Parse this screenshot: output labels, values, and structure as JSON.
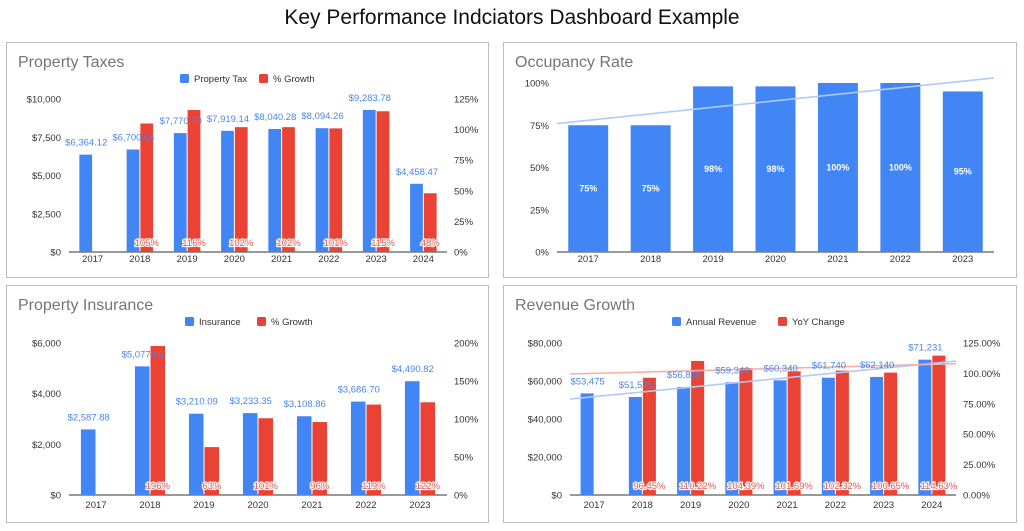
{
  "page": {
    "title": "Key Performance Indciators Dashboard Example"
  },
  "colors": {
    "blue": "#4285f4",
    "red": "#ea4335",
    "trend_blue": "#aecbfa",
    "trend_red": "#f4b1ab"
  },
  "chart_data": [
    {
      "id": "property-taxes",
      "type": "bar",
      "title": "Property Taxes",
      "categories": [
        "2017",
        "2018",
        "2019",
        "2020",
        "2021",
        "2022",
        "2023",
        "2024"
      ],
      "legend_position": "top",
      "left_axis": {
        "ylim": [
          0,
          10000
        ],
        "ticks": [
          0,
          2500,
          5000,
          7500,
          10000
        ],
        "tick_labels": [
          "$0",
          "$2,500",
          "$5,000",
          "$7,500",
          "$10,000"
        ]
      },
      "right_axis": {
        "ylim": [
          0,
          125
        ],
        "ticks": [
          0,
          25,
          50,
          75,
          100,
          125
        ],
        "tick_labels": [
          "0%",
          "25%",
          "50%",
          "75%",
          "100%",
          "125%"
        ]
      },
      "series": [
        {
          "name": "Property Tax",
          "axis": "left",
          "color": "#4285f4",
          "values": [
            6364.12,
            6700.64,
            7770.7,
            7919.14,
            8040.28,
            8094.26,
            9283.78,
            4458.47
          ],
          "labels": [
            "$6,364.12",
            "$6,700.64",
            "$7,770.70",
            "$7,919.14",
            "$8,040.28",
            "$8,094.26",
            "$9,283.78",
            "$4,458.47"
          ]
        },
        {
          "name": "% Growth",
          "axis": "right",
          "color": "#ea4335",
          "values": [
            null,
            105,
            116,
            102,
            102,
            101,
            115,
            48
          ],
          "labels": [
            "",
            "105%",
            "116%",
            "102%",
            "102%",
            "101%",
            "115%",
            "48%"
          ]
        }
      ]
    },
    {
      "id": "occupancy-rate",
      "type": "bar",
      "title": "Occupancy Rate",
      "categories": [
        "2017",
        "2018",
        "2019",
        "2020",
        "2021",
        "2022",
        "2023"
      ],
      "legend_position": "none",
      "left_axis": {
        "ylim": [
          0,
          100
        ],
        "ticks": [
          0,
          25,
          50,
          75,
          100
        ],
        "tick_labels": [
          "0%",
          "25%",
          "50%",
          "75%",
          "100%"
        ]
      },
      "trendline": {
        "series": 0,
        "start": 76,
        "end": 103
      },
      "series": [
        {
          "name": "Occupancy",
          "axis": "left",
          "color": "#4285f4",
          "values": [
            75,
            75,
            98,
            98,
            100,
            100,
            95
          ],
          "labels": [
            "75%",
            "75%",
            "98%",
            "98%",
            "100%",
            "100%",
            "95%"
          ]
        }
      ]
    },
    {
      "id": "property-insurance",
      "type": "bar",
      "title": "Property Insurance",
      "categories": [
        "2017",
        "2018",
        "2019",
        "2020",
        "2021",
        "2022",
        "2023"
      ],
      "legend_position": "top",
      "left_axis": {
        "ylim": [
          0,
          6000
        ],
        "ticks": [
          0,
          2000,
          4000,
          6000
        ],
        "tick_labels": [
          "$0",
          "$2,000",
          "$4,000",
          "$6,000"
        ]
      },
      "right_axis": {
        "ylim": [
          0,
          200
        ],
        "ticks": [
          0,
          50,
          100,
          150,
          200
        ],
        "tick_labels": [
          "0%",
          "50%",
          "100%",
          "150%",
          "200%"
        ]
      },
      "series": [
        {
          "name": "Insurance",
          "axis": "left",
          "color": "#4285f4",
          "values": [
            2587.88,
            5077.65,
            3210.09,
            3233.35,
            3108.86,
            3686.7,
            4490.82
          ],
          "labels": [
            "$2,587.88",
            "$5,077.65",
            "$3,210.09",
            "$3,233.35",
            "$3,108.86",
            "$3,686.70",
            "$4,490.82"
          ]
        },
        {
          "name": "% Growth",
          "axis": "right",
          "color": "#ea4335",
          "values": [
            null,
            196,
            63,
            101,
            96,
            119,
            122
          ],
          "labels": [
            "",
            "196%",
            "63%",
            "101%",
            "96%",
            "119%",
            "122%"
          ]
        }
      ]
    },
    {
      "id": "revenue-growth",
      "type": "bar",
      "title": "Revenue Growth",
      "categories": [
        "2017",
        "2018",
        "2019",
        "2020",
        "2021",
        "2022",
        "2023",
        "2024"
      ],
      "legend_position": "top",
      "left_axis": {
        "ylim": [
          0,
          80000
        ],
        "ticks": [
          0,
          20000,
          40000,
          60000,
          80000
        ],
        "tick_labels": [
          "$0",
          "$20,000",
          "$40,000",
          "$60,000",
          "$80,000"
        ]
      },
      "right_axis": {
        "ylim": [
          0,
          125
        ],
        "ticks": [
          0,
          25,
          50,
          75,
          100,
          125
        ],
        "tick_labels": [
          "0.00%",
          "25.00%",
          "50.00%",
          "75.00%",
          "100.00%",
          "125.00%"
        ]
      },
      "trendlines": [
        {
          "series": 0,
          "start": 50500,
          "end": 70500
        },
        {
          "series": 1,
          "start": 99.5,
          "end": 108
        }
      ],
      "series": [
        {
          "name": "Annual Revenue",
          "axis": "left",
          "color": "#4285f4",
          "values": [
            53475,
            51575,
            56845,
            59340,
            60340,
            61740,
            62140,
            71231
          ],
          "labels": [
            "$53,475",
            "$51,575",
            "$56,845",
            "$59,340",
            "$60,340",
            "$61,740",
            "$62,140",
            "$71,231"
          ]
        },
        {
          "name": "YoY Change",
          "axis": "right",
          "color": "#ea4335",
          "values": [
            null,
            96.45,
            110.22,
            104.39,
            101.69,
            102.32,
            100.65,
            114.63
          ],
          "labels": [
            "",
            "96.45%",
            "110.22%",
            "104.39%",
            "101.69%",
            "102.32%",
            "100.65%",
            "114.63%"
          ]
        }
      ]
    }
  ]
}
